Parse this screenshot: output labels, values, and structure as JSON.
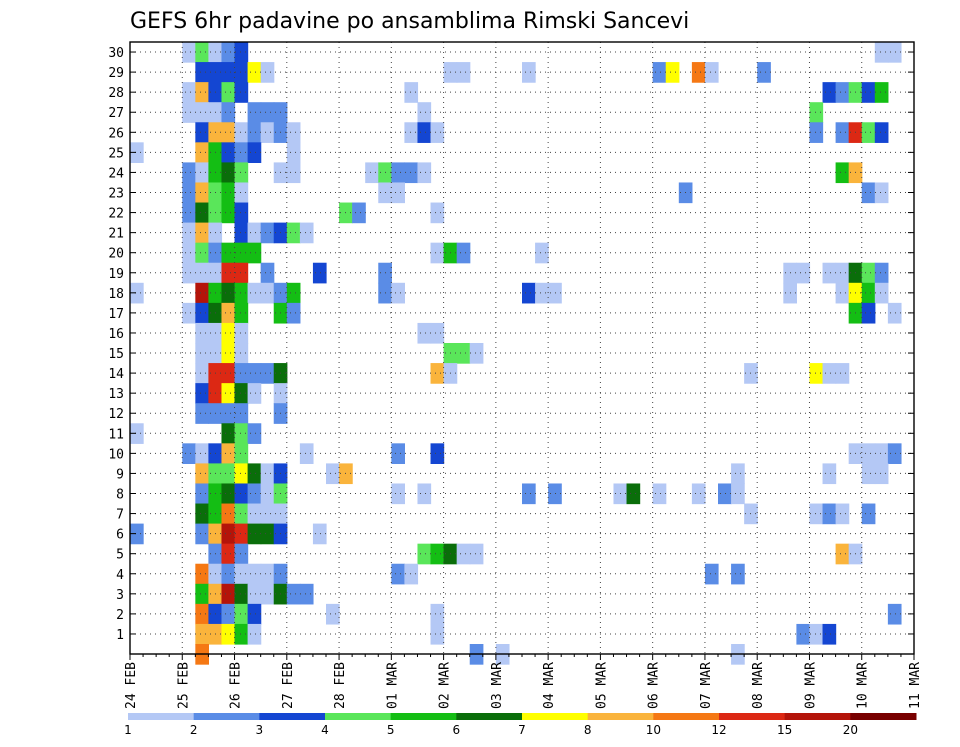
{
  "chart_data": {
    "type": "heatmap",
    "title": "GEFS 6hr padavine po ansamblima Rimski Sancevi",
    "y_tick_labels": [
      "1",
      "2",
      "3",
      "4",
      "5",
      "6",
      "7",
      "8",
      "9",
      "10",
      "11",
      "12",
      "13",
      "14",
      "15",
      "16",
      "17",
      "18",
      "19",
      "20",
      "21",
      "22",
      "23",
      "24",
      "25",
      "26",
      "27",
      "28",
      "29",
      "30"
    ],
    "x_tick_labels": [
      "24 FEB",
      "25 FEB",
      "26 FEB",
      "27 FEB",
      "28 FEB",
      "01 MAR",
      "02 MAR",
      "03 MAR",
      "04 MAR",
      "05 MAR",
      "06 MAR",
      "07 MAR",
      "08 MAR",
      "09 MAR",
      "10 MAR",
      "11 MAR"
    ],
    "grid": true,
    "time_steps_per_day": 4,
    "legend": {
      "position": "bottom",
      "labels": [
        "1",
        "2",
        "3",
        "4",
        "5",
        "6",
        "7",
        "8",
        "10",
        "12",
        "15",
        "20"
      ],
      "colors": [
        "#b4c8f5",
        "#5a8ce6",
        "#1446d2",
        "#5ae65a",
        "#14be14",
        "#0a6e0a",
        "#ffff00",
        "#fab43c",
        "#f57814",
        "#dc2814",
        "#b4140a",
        "#780000"
      ]
    },
    "cells": [
      [
        30,
        4,
        1
      ],
      [
        30,
        5,
        4
      ],
      [
        30,
        6,
        1
      ],
      [
        30,
        7,
        2
      ],
      [
        30,
        8,
        3
      ],
      [
        30,
        57,
        1
      ],
      [
        30,
        58,
        1
      ],
      [
        29,
        5,
        3
      ],
      [
        29,
        6,
        3
      ],
      [
        29,
        7,
        3
      ],
      [
        29,
        8,
        3
      ],
      [
        29,
        9,
        7
      ],
      [
        29,
        10,
        1
      ],
      [
        29,
        24,
        1
      ],
      [
        29,
        25,
        1
      ],
      [
        29,
        30,
        1
      ],
      [
        29,
        40,
        2
      ],
      [
        29,
        41,
        7
      ],
      [
        29,
        43,
        9
      ],
      [
        29,
        44,
        1
      ],
      [
        29,
        48,
        2
      ],
      [
        28,
        4,
        1
      ],
      [
        28,
        5,
        8
      ],
      [
        28,
        6,
        3
      ],
      [
        28,
        7,
        4
      ],
      [
        28,
        8,
        3
      ],
      [
        28,
        21,
        1
      ],
      [
        28,
        53,
        3
      ],
      [
        28,
        54,
        2
      ],
      [
        28,
        55,
        4
      ],
      [
        28,
        56,
        3
      ],
      [
        28,
        57,
        5
      ],
      [
        27,
        4,
        1
      ],
      [
        27,
        5,
        1
      ],
      [
        27,
        6,
        1
      ],
      [
        27,
        7,
        2
      ],
      [
        27,
        9,
        2
      ],
      [
        27,
        10,
        2
      ],
      [
        27,
        11,
        2
      ],
      [
        27,
        22,
        1
      ],
      [
        27,
        52,
        4
      ],
      [
        26,
        5,
        3
      ],
      [
        26,
        6,
        8
      ],
      [
        26,
        7,
        8
      ],
      [
        26,
        8,
        1
      ],
      [
        26,
        9,
        2
      ],
      [
        26,
        10,
        1
      ],
      [
        26,
        11,
        2
      ],
      [
        26,
        12,
        1
      ],
      [
        26,
        21,
        1
      ],
      [
        26,
        22,
        3
      ],
      [
        26,
        23,
        1
      ],
      [
        26,
        52,
        2
      ],
      [
        26,
        54,
        2
      ],
      [
        26,
        55,
        10
      ],
      [
        26,
        56,
        4
      ],
      [
        26,
        57,
        3
      ],
      [
        25,
        0,
        1
      ],
      [
        25,
        5,
        8
      ],
      [
        25,
        6,
        5
      ],
      [
        25,
        7,
        3
      ],
      [
        25,
        8,
        2
      ],
      [
        25,
        9,
        3
      ],
      [
        25,
        12,
        1
      ],
      [
        24,
        4,
        2
      ],
      [
        24,
        5,
        1
      ],
      [
        24,
        6,
        5
      ],
      [
        24,
        7,
        6
      ],
      [
        24,
        8,
        4
      ],
      [
        24,
        11,
        1
      ],
      [
        24,
        12,
        1
      ],
      [
        24,
        18,
        1
      ],
      [
        24,
        19,
        4
      ],
      [
        24,
        20,
        2
      ],
      [
        24,
        21,
        2
      ],
      [
        24,
        22,
        1
      ],
      [
        24,
        54,
        5
      ],
      [
        24,
        55,
        8
      ],
      [
        23,
        4,
        2
      ],
      [
        23,
        5,
        8
      ],
      [
        23,
        6,
        4
      ],
      [
        23,
        7,
        5
      ],
      [
        23,
        8,
        1
      ],
      [
        23,
        19,
        1
      ],
      [
        23,
        20,
        1
      ],
      [
        23,
        42,
        2
      ],
      [
        23,
        56,
        2
      ],
      [
        23,
        57,
        1
      ],
      [
        22,
        4,
        2
      ],
      [
        22,
        5,
        6
      ],
      [
        22,
        6,
        4
      ],
      [
        22,
        7,
        5
      ],
      [
        22,
        8,
        3
      ],
      [
        22,
        16,
        4
      ],
      [
        22,
        17,
        2
      ],
      [
        22,
        23,
        1
      ],
      [
        21,
        4,
        1
      ],
      [
        21,
        5,
        8
      ],
      [
        21,
        6,
        1
      ],
      [
        21,
        8,
        3
      ],
      [
        21,
        9,
        1
      ],
      [
        21,
        10,
        2
      ],
      [
        21,
        11,
        3
      ],
      [
        21,
        12,
        4
      ],
      [
        21,
        13,
        1
      ],
      [
        20,
        4,
        1
      ],
      [
        20,
        5,
        4
      ],
      [
        20,
        6,
        2
      ],
      [
        20,
        7,
        5
      ],
      [
        20,
        8,
        5
      ],
      [
        20,
        9,
        5
      ],
      [
        20,
        23,
        1
      ],
      [
        20,
        24,
        5
      ],
      [
        20,
        25,
        2
      ],
      [
        20,
        31,
        1
      ],
      [
        19,
        4,
        1
      ],
      [
        19,
        5,
        1
      ],
      [
        19,
        6,
        1
      ],
      [
        19,
        7,
        10
      ],
      [
        19,
        8,
        10
      ],
      [
        19,
        10,
        2
      ],
      [
        19,
        14,
        3
      ],
      [
        19,
        19,
        2
      ],
      [
        19,
        50,
        1
      ],
      [
        19,
        51,
        1
      ],
      [
        19,
        53,
        1
      ],
      [
        19,
        54,
        1
      ],
      [
        19,
        55,
        6
      ],
      [
        19,
        56,
        4
      ],
      [
        19,
        57,
        2
      ],
      [
        18,
        0,
        1
      ],
      [
        18,
        5,
        11
      ],
      [
        18,
        6,
        5
      ],
      [
        18,
        7,
        6
      ],
      [
        18,
        8,
        5
      ],
      [
        18,
        9,
        1
      ],
      [
        18,
        10,
        1
      ],
      [
        18,
        11,
        2
      ],
      [
        18,
        12,
        5
      ],
      [
        18,
        19,
        2
      ],
      [
        18,
        20,
        1
      ],
      [
        18,
        30,
        3
      ],
      [
        18,
        31,
        1
      ],
      [
        18,
        32,
        1
      ],
      [
        18,
        50,
        1
      ],
      [
        18,
        54,
        1
      ],
      [
        18,
        55,
        7
      ],
      [
        18,
        56,
        5
      ],
      [
        18,
        57,
        1
      ],
      [
        17,
        4,
        1
      ],
      [
        17,
        5,
        3
      ],
      [
        17,
        6,
        6
      ],
      [
        17,
        7,
        8
      ],
      [
        17,
        8,
        5
      ],
      [
        17,
        11,
        5
      ],
      [
        17,
        12,
        2
      ],
      [
        17,
        55,
        5
      ],
      [
        17,
        56,
        3
      ],
      [
        17,
        58,
        1
      ],
      [
        16,
        5,
        1
      ],
      [
        16,
        6,
        1
      ],
      [
        16,
        7,
        7
      ],
      [
        16,
        8,
        1
      ],
      [
        16,
        22,
        1
      ],
      [
        16,
        23,
        1
      ],
      [
        15,
        5,
        1
      ],
      [
        15,
        6,
        1
      ],
      [
        15,
        7,
        7
      ],
      [
        15,
        8,
        1
      ],
      [
        15,
        24,
        4
      ],
      [
        15,
        25,
        4
      ],
      [
        15,
        26,
        1
      ],
      [
        14,
        5,
        1
      ],
      [
        14,
        6,
        10
      ],
      [
        14,
        7,
        10
      ],
      [
        14,
        8,
        2
      ],
      [
        14,
        9,
        2
      ],
      [
        14,
        10,
        2
      ],
      [
        14,
        11,
        6
      ],
      [
        14,
        23,
        8
      ],
      [
        14,
        24,
        1
      ],
      [
        14,
        47,
        1
      ],
      [
        14,
        52,
        7
      ],
      [
        14,
        53,
        1
      ],
      [
        14,
        54,
        1
      ],
      [
        13,
        5,
        3
      ],
      [
        13,
        6,
        10
      ],
      [
        13,
        7,
        7
      ],
      [
        13,
        8,
        6
      ],
      [
        13,
        9,
        1
      ],
      [
        13,
        11,
        1
      ],
      [
        12,
        5,
        2
      ],
      [
        12,
        6,
        2
      ],
      [
        12,
        7,
        2
      ],
      [
        12,
        8,
        2
      ],
      [
        12,
        11,
        2
      ],
      [
        11,
        0,
        1
      ],
      [
        11,
        7,
        6
      ],
      [
        11,
        8,
        4
      ],
      [
        11,
        9,
        2
      ],
      [
        10,
        4,
        2
      ],
      [
        10,
        5,
        1
      ],
      [
        10,
        6,
        3
      ],
      [
        10,
        7,
        8
      ],
      [
        10,
        8,
        4
      ],
      [
        10,
        13,
        1
      ],
      [
        10,
        20,
        2
      ],
      [
        10,
        23,
        3
      ],
      [
        10,
        55,
        1
      ],
      [
        10,
        56,
        1
      ],
      [
        10,
        57,
        1
      ],
      [
        10,
        58,
        2
      ],
      [
        9,
        5,
        8
      ],
      [
        9,
        6,
        4
      ],
      [
        9,
        7,
        4
      ],
      [
        9,
        8,
        7
      ],
      [
        9,
        9,
        6
      ],
      [
        9,
        10,
        1
      ],
      [
        9,
        11,
        3
      ],
      [
        9,
        15,
        1
      ],
      [
        9,
        16,
        8
      ],
      [
        9,
        46,
        1
      ],
      [
        9,
        53,
        1
      ],
      [
        9,
        56,
        1
      ],
      [
        9,
        57,
        1
      ],
      [
        8,
        5,
        2
      ],
      [
        8,
        6,
        5
      ],
      [
        8,
        7,
        6
      ],
      [
        8,
        8,
        3
      ],
      [
        8,
        9,
        2
      ],
      [
        8,
        10,
        1
      ],
      [
        8,
        11,
        4
      ],
      [
        8,
        20,
        1
      ],
      [
        8,
        22,
        1
      ],
      [
        8,
        30,
        2
      ],
      [
        8,
        32,
        2
      ],
      [
        8,
        37,
        1
      ],
      [
        8,
        38,
        6
      ],
      [
        8,
        40,
        1
      ],
      [
        8,
        43,
        1
      ],
      [
        8,
        45,
        2
      ],
      [
        8,
        46,
        1
      ],
      [
        7,
        5,
        6
      ],
      [
        7,
        6,
        5
      ],
      [
        7,
        7,
        9
      ],
      [
        7,
        8,
        4
      ],
      [
        7,
        9,
        1
      ],
      [
        7,
        10,
        1
      ],
      [
        7,
        11,
        1
      ],
      [
        7,
        47,
        1
      ],
      [
        7,
        52,
        1
      ],
      [
        7,
        53,
        2
      ],
      [
        7,
        54,
        1
      ],
      [
        7,
        56,
        2
      ],
      [
        6,
        0,
        2
      ],
      [
        6,
        5,
        2
      ],
      [
        6,
        6,
        8
      ],
      [
        6,
        7,
        11
      ],
      [
        6,
        8,
        10
      ],
      [
        6,
        9,
        6
      ],
      [
        6,
        10,
        6
      ],
      [
        6,
        11,
        3
      ],
      [
        6,
        14,
        1
      ],
      [
        5,
        6,
        2
      ],
      [
        5,
        7,
        10
      ],
      [
        5,
        8,
        2
      ],
      [
        5,
        22,
        4
      ],
      [
        5,
        23,
        5
      ],
      [
        5,
        24,
        6
      ],
      [
        5,
        25,
        1
      ],
      [
        5,
        26,
        1
      ],
      [
        5,
        54,
        8
      ],
      [
        5,
        55,
        1
      ],
      [
        4,
        5,
        9
      ],
      [
        4,
        6,
        1
      ],
      [
        4,
        7,
        2
      ],
      [
        4,
        8,
        1
      ],
      [
        4,
        9,
        1
      ],
      [
        4,
        10,
        1
      ],
      [
        4,
        11,
        2
      ],
      [
        4,
        20,
        2
      ],
      [
        4,
        21,
        1
      ],
      [
        4,
        44,
        2
      ],
      [
        4,
        46,
        2
      ],
      [
        3,
        5,
        5
      ],
      [
        3,
        6,
        8
      ],
      [
        3,
        7,
        11
      ],
      [
        3,
        8,
        6
      ],
      [
        3,
        9,
        1
      ],
      [
        3,
        10,
        1
      ],
      [
        3,
        11,
        6
      ],
      [
        3,
        12,
        2
      ],
      [
        3,
        13,
        2
      ],
      [
        2,
        5,
        9
      ],
      [
        2,
        6,
        3
      ],
      [
        2,
        7,
        2
      ],
      [
        2,
        8,
        4
      ],
      [
        2,
        9,
        3
      ],
      [
        2,
        15,
        1
      ],
      [
        2,
        23,
        1
      ],
      [
        2,
        58,
        2
      ],
      [
        1,
        5,
        8
      ],
      [
        1,
        6,
        8
      ],
      [
        1,
        7,
        7
      ],
      [
        1,
        8,
        5
      ],
      [
        1,
        9,
        1
      ],
      [
        1,
        23,
        1
      ],
      [
        1,
        51,
        2
      ],
      [
        1,
        52,
        1
      ],
      [
        1,
        53,
        3
      ],
      [
        0,
        5,
        9
      ],
      [
        0,
        26,
        2
      ],
      [
        0,
        28,
        1
      ],
      [
        0,
        46,
        1
      ]
    ]
  }
}
